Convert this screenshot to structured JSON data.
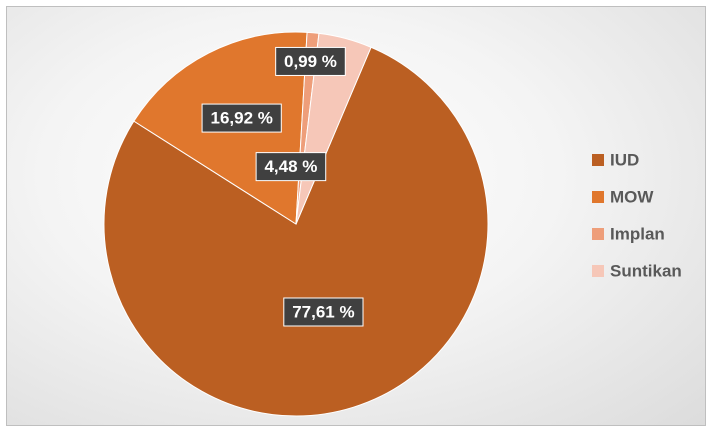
{
  "chart_data": {
    "type": "pie",
    "title": "",
    "categories": [
      "IUD",
      "MOW",
      "Implan",
      "Suntikan"
    ],
    "values": [
      77.61,
      16.92,
      0.99,
      4.48
    ],
    "data_labels": [
      "77,61 %",
      "16,92 %",
      "0,99 %",
      "4,48 %"
    ],
    "colors": [
      "#bb5f22",
      "#e0772d",
      "#ee9e7a",
      "#f6c7b8"
    ],
    "legend_position": "right",
    "start_angle_deg": 23,
    "direction": "clockwise"
  }
}
